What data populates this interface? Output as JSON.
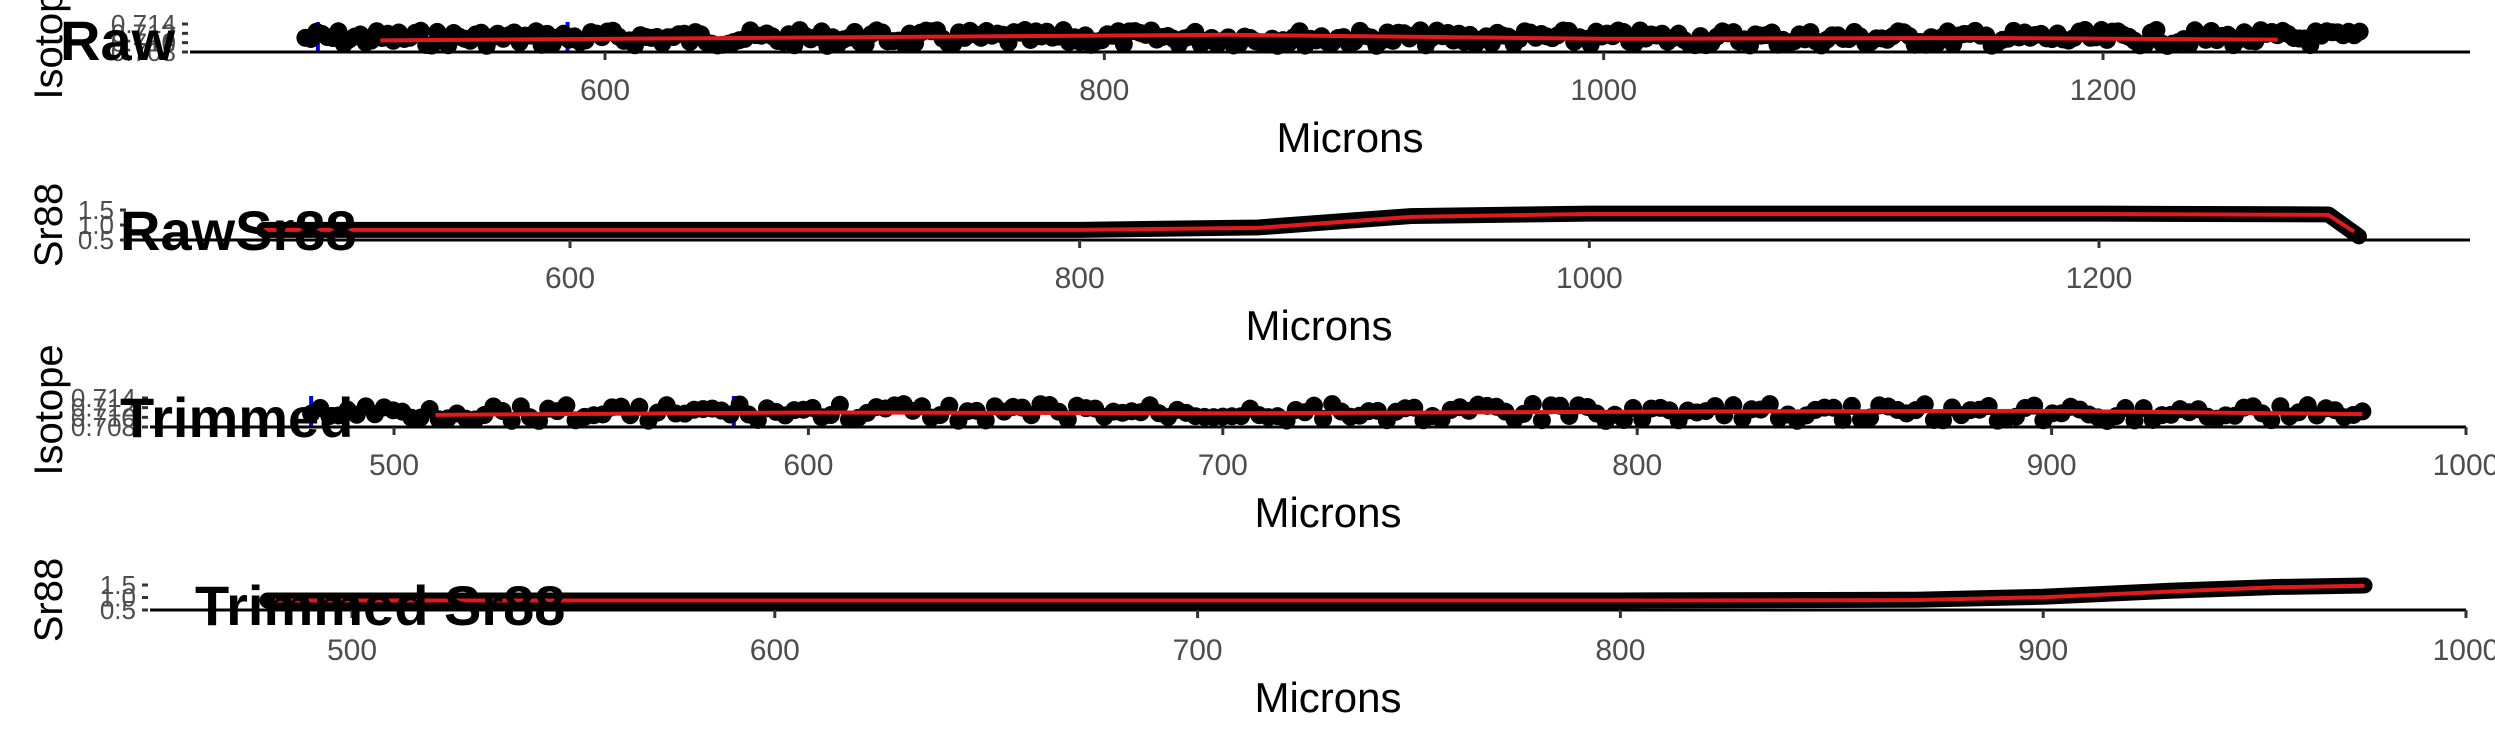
{
  "chart_data": [
    {
      "type": "scatter",
      "title": "Raw",
      "xlabel": "Microns",
      "ylabel": "Isotope",
      "xlim": [
        470,
        1310
      ],
      "x_ticks": [
        600,
        800,
        1000,
        1200
      ],
      "y_tick_labels": [
        "0.714",
        "0.712",
        "0.710",
        "0.708"
      ],
      "series": [
        {
          "role": "points",
          "x_range": [
            480,
            1305
          ],
          "y": 0.711,
          "color": "#000000"
        },
        {
          "role": "smooth",
          "x": [
            510,
            700,
            850,
            1000,
            1150,
            1270
          ],
          "y": [
            0.7108,
            0.7112,
            0.7115,
            0.711,
            0.7111,
            0.7109
          ],
          "color": "#e31a1c"
        }
      ],
      "vlines": [
        {
          "x": 485,
          "color": "#0000ff"
        },
        {
          "x": 585,
          "color": "#0000ff"
        }
      ],
      "grid": false
    },
    {
      "type": "scatter",
      "title": "RawSr88",
      "xlabel": "Microns",
      "ylabel": "Sr88",
      "xlim": [
        470,
        1310
      ],
      "x_ticks": [
        600,
        800,
        1000,
        1200
      ],
      "y_tick_labels": [
        "1.5",
        "1.0",
        "0.5"
      ],
      "series": [
        {
          "role": "points",
          "x": [
            480,
            600,
            800,
            870,
            930,
            1000,
            1200,
            1290,
            1302
          ],
          "y": [
            0.5,
            0.5,
            0.5,
            0.65,
            1.35,
            1.5,
            1.5,
            1.45,
            0.1
          ],
          "color": "#000000"
        },
        {
          "role": "smooth",
          "x": [
            480,
            600,
            800,
            870,
            930,
            1000,
            1200,
            1290,
            1300
          ],
          "y": [
            0.5,
            0.5,
            0.5,
            0.62,
            1.3,
            1.48,
            1.48,
            1.42,
            0.4
          ],
          "color": "#e31a1c"
        }
      ],
      "grid": false
    },
    {
      "type": "scatter",
      "title": "Trimmed",
      "xlabel": "Microns",
      "ylabel": "Isotope",
      "xlim": [
        455,
        1000
      ],
      "x_ticks": [
        500,
        600,
        700,
        800,
        900,
        1000
      ],
      "y_tick_labels": [
        "0.714",
        "0.712",
        "0.710",
        "0.708"
      ],
      "series": [
        {
          "role": "points",
          "x_range": [
            480,
            976
          ],
          "y": 0.711,
          "color": "#000000"
        },
        {
          "role": "smooth",
          "x": [
            510,
            600,
            700,
            800,
            900,
            975
          ],
          "y": [
            0.7108,
            0.7111,
            0.711,
            0.7112,
            0.7113,
            0.7109
          ],
          "color": "#e31a1c"
        }
      ],
      "vlines": [
        {
          "x": 480,
          "color": "#0000ff"
        },
        {
          "x": 582,
          "color": "#0000ff"
        }
      ],
      "grid": false
    },
    {
      "type": "scatter",
      "title": "Trimmed Sr88",
      "xlabel": "Microns",
      "ylabel": "Sr88",
      "xlim": [
        455,
        1000
      ],
      "x_ticks": [
        500,
        600,
        700,
        800,
        900,
        1000
      ],
      "y_tick_labels": [
        "1.5",
        "1.0",
        "0.5"
      ],
      "series": [
        {
          "role": "points",
          "x": [
            480,
            600,
            700,
            800,
            870,
            900,
            930,
            955,
            976
          ],
          "y": [
            0.5,
            0.5,
            0.5,
            0.5,
            0.55,
            0.75,
            1.15,
            1.4,
            1.5
          ],
          "color": "#000000"
        },
        {
          "role": "smooth",
          "x": [
            480,
            600,
            700,
            800,
            870,
            900,
            930,
            955,
            976
          ],
          "y": [
            0.5,
            0.5,
            0.5,
            0.5,
            0.53,
            0.72,
            1.1,
            1.38,
            1.48
          ],
          "color": "#e31a1c"
        }
      ],
      "grid": false
    }
  ]
}
